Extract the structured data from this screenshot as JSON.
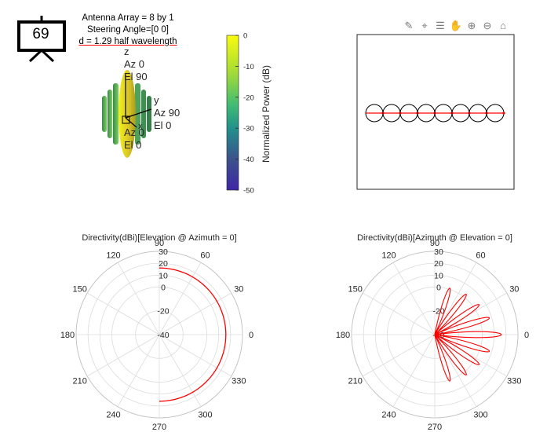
{
  "slide_number": "69",
  "array_title": [
    "Antenna Array = 8 by 1",
    "Steering Angle=[0 0]",
    "d = 1.29 half wavelength"
  ],
  "pattern3d": {
    "axis_labels": {
      "z": [
        "z",
        "Az 0",
        "El 90"
      ],
      "y": [
        "y",
        "Az 90",
        "El 0"
      ],
      "x": [
        "x",
        "Az 0",
        "El 0"
      ]
    }
  },
  "colorbar": {
    "label": "Normalized Power (dB)",
    "ticks": [
      "0",
      "-10",
      "-20",
      "-30",
      "-40",
      "-50"
    ],
    "colors": [
      "#f9fb0e",
      "#3fbc73",
      "#21918c",
      "#3b528b",
      "#3e26a8"
    ]
  },
  "toolbar_icons": [
    "brush-icon",
    "datatip-icon",
    "legend-icon",
    "pan-hand-icon",
    "zoom-in-icon",
    "zoom-out-icon",
    "home-icon"
  ],
  "accent_color": "#ff0000",
  "chart_data": [
    {
      "type": "polar",
      "title": "Directivity(dBi)[Elevation @ Azimuth = 0]",
      "angle_ticks": [
        "0",
        "30",
        "60",
        "90",
        "120",
        "150",
        "180",
        "210",
        "240",
        "270",
        "300",
        "330"
      ],
      "radial_ticks": [
        "-40",
        "-20",
        "0",
        "10",
        "20",
        "30"
      ],
      "series": [
        {
          "angles_deg": [
            90,
            75,
            60,
            45,
            30,
            15,
            0,
            -15,
            -30,
            -45,
            -60,
            -75,
            -90
          ],
          "values_db": [
            16,
            16,
            16,
            16,
            16,
            16,
            16,
            16,
            16,
            16,
            16,
            16,
            16
          ]
        }
      ]
    },
    {
      "type": "polar",
      "title": "Directivity(dBi)[Azimuth @ Elevation = 0]",
      "angle_ticks": [
        "0",
        "30",
        "60",
        "90",
        "120",
        "150",
        "180",
        "210",
        "240",
        "270",
        "300",
        "330"
      ],
      "radial_ticks": [
        "-40",
        "-20",
        "0",
        "10",
        "20",
        "30"
      ],
      "series": [
        {
          "lobes": [
            {
              "center_deg": 0,
              "peak_db": 16
            },
            {
              "center_deg": 17,
              "peak_db": 8
            },
            {
              "center_deg": -17,
              "peak_db": 8
            },
            {
              "center_deg": 34,
              "peak_db": 5
            },
            {
              "center_deg": -34,
              "peak_db": 5
            },
            {
              "center_deg": 52,
              "peak_db": 3
            },
            {
              "center_deg": -52,
              "peak_db": 3
            },
            {
              "center_deg": 72,
              "peak_db": 1
            },
            {
              "center_deg": -72,
              "peak_db": 1
            }
          ]
        }
      ]
    }
  ]
}
